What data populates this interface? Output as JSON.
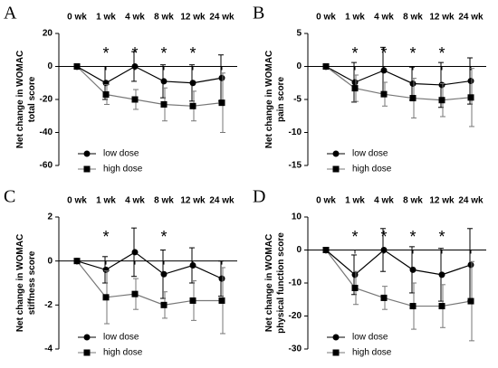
{
  "chart_data": [
    {
      "type": "line",
      "panel_label": "A",
      "ylabel": [
        "Net change in WOMAC",
        "total score"
      ],
      "categories": [
        "0 wk",
        "1 wk",
        "4 wk",
        "8 wk",
        "12 wk",
        "24 wk"
      ],
      "significance": [
        null,
        "*",
        "*",
        "*",
        "*",
        null
      ],
      "ylim": [
        -60,
        20
      ],
      "yticks": [
        -60,
        -40,
        -20,
        0,
        20
      ],
      "legend": "lower left",
      "series": [
        {
          "name": "low dose",
          "color": "#000000",
          "marker": "circle",
          "values": [
            0,
            -10,
            0,
            -9,
            -10,
            -7
          ],
          "errors": [
            null,
            10,
            9,
            10,
            11,
            14
          ]
        },
        {
          "name": "high dose",
          "color": "#777777",
          "marker": "square",
          "values": [
            0,
            -17,
            -20,
            -23,
            -24,
            -22
          ],
          "errors": [
            null,
            6,
            6,
            10,
            9,
            18
          ]
        }
      ]
    },
    {
      "type": "line",
      "panel_label": "B",
      "ylabel": [
        "Net change in WOMAC",
        "pain score"
      ],
      "categories": [
        "0 wk",
        "1 wk",
        "4 wk",
        "8 wk",
        "12 wk",
        "24 wk"
      ],
      "significance": [
        null,
        "*",
        "*",
        "*",
        "*",
        null
      ],
      "ylim": [
        -15,
        5
      ],
      "yticks": [
        -15,
        -10,
        -5,
        0,
        5
      ],
      "legend": "lower left",
      "series": [
        {
          "name": "low dose",
          "color": "#000000",
          "marker": "circle",
          "values": [
            0,
            -2.4,
            -0.6,
            -2.6,
            -2.8,
            -2.2
          ],
          "errors": [
            null,
            3,
            3.5,
            2.5,
            3.4,
            3.5
          ]
        },
        {
          "name": "high dose",
          "color": "#777777",
          "marker": "square",
          "values": [
            0,
            -3.3,
            -4.2,
            -4.8,
            -5.1,
            -4.7
          ],
          "errors": [
            null,
            2,
            1.8,
            3,
            2.5,
            4.4
          ]
        }
      ]
    },
    {
      "type": "line",
      "panel_label": "C",
      "ylabel": [
        "Net change in WOMAC",
        "stiffness score"
      ],
      "categories": [
        "0 wk",
        "1 wk",
        "4 wk",
        "8 wk",
        "12 wk",
        "24 wk"
      ],
      "significance": [
        null,
        "*",
        null,
        "*",
        null,
        null
      ],
      "ylim": [
        -4,
        2
      ],
      "yticks": [
        -4,
        -2,
        0,
        2
      ],
      "legend": "lower left",
      "series": [
        {
          "name": "low dose",
          "color": "#000000",
          "marker": "circle",
          "values": [
            0,
            -0.4,
            0.4,
            -0.6,
            -0.2,
            -0.8
          ],
          "errors": [
            null,
            0.6,
            1.1,
            1.1,
            0.8,
            0.8
          ]
        },
        {
          "name": "high dose",
          "color": "#777777",
          "marker": "square",
          "values": [
            0,
            -1.65,
            -1.5,
            -2.0,
            -1.8,
            -1.8
          ],
          "errors": [
            null,
            1.2,
            0.7,
            0.6,
            0.9,
            1.5
          ]
        }
      ]
    },
    {
      "type": "line",
      "panel_label": "D",
      "ylabel": [
        "Net change in WOMAC",
        "physical function score"
      ],
      "categories": [
        "0 wk",
        "1 wk",
        "4 wk",
        "8 wk",
        "12 wk",
        "24 wk"
      ],
      "significance": [
        null,
        "*",
        "*",
        "*",
        "*",
        null
      ],
      "ylim": [
        -30,
        10
      ],
      "yticks": [
        -30,
        -20,
        -10,
        0,
        10
      ],
      "legend": "lower left",
      "series": [
        {
          "name": "low dose",
          "color": "#000000",
          "marker": "circle",
          "values": [
            0,
            -7.5,
            0,
            -6,
            -7.5,
            -4.5
          ],
          "errors": [
            null,
            6,
            6.5,
            7,
            8,
            11
          ]
        },
        {
          "name": "high dose",
          "color": "#777777",
          "marker": "square",
          "values": [
            0,
            -11.5,
            -14.5,
            -17,
            -17,
            -15.5
          ],
          "errors": [
            null,
            5,
            3.5,
            7,
            6.5,
            12
          ]
        }
      ]
    }
  ]
}
